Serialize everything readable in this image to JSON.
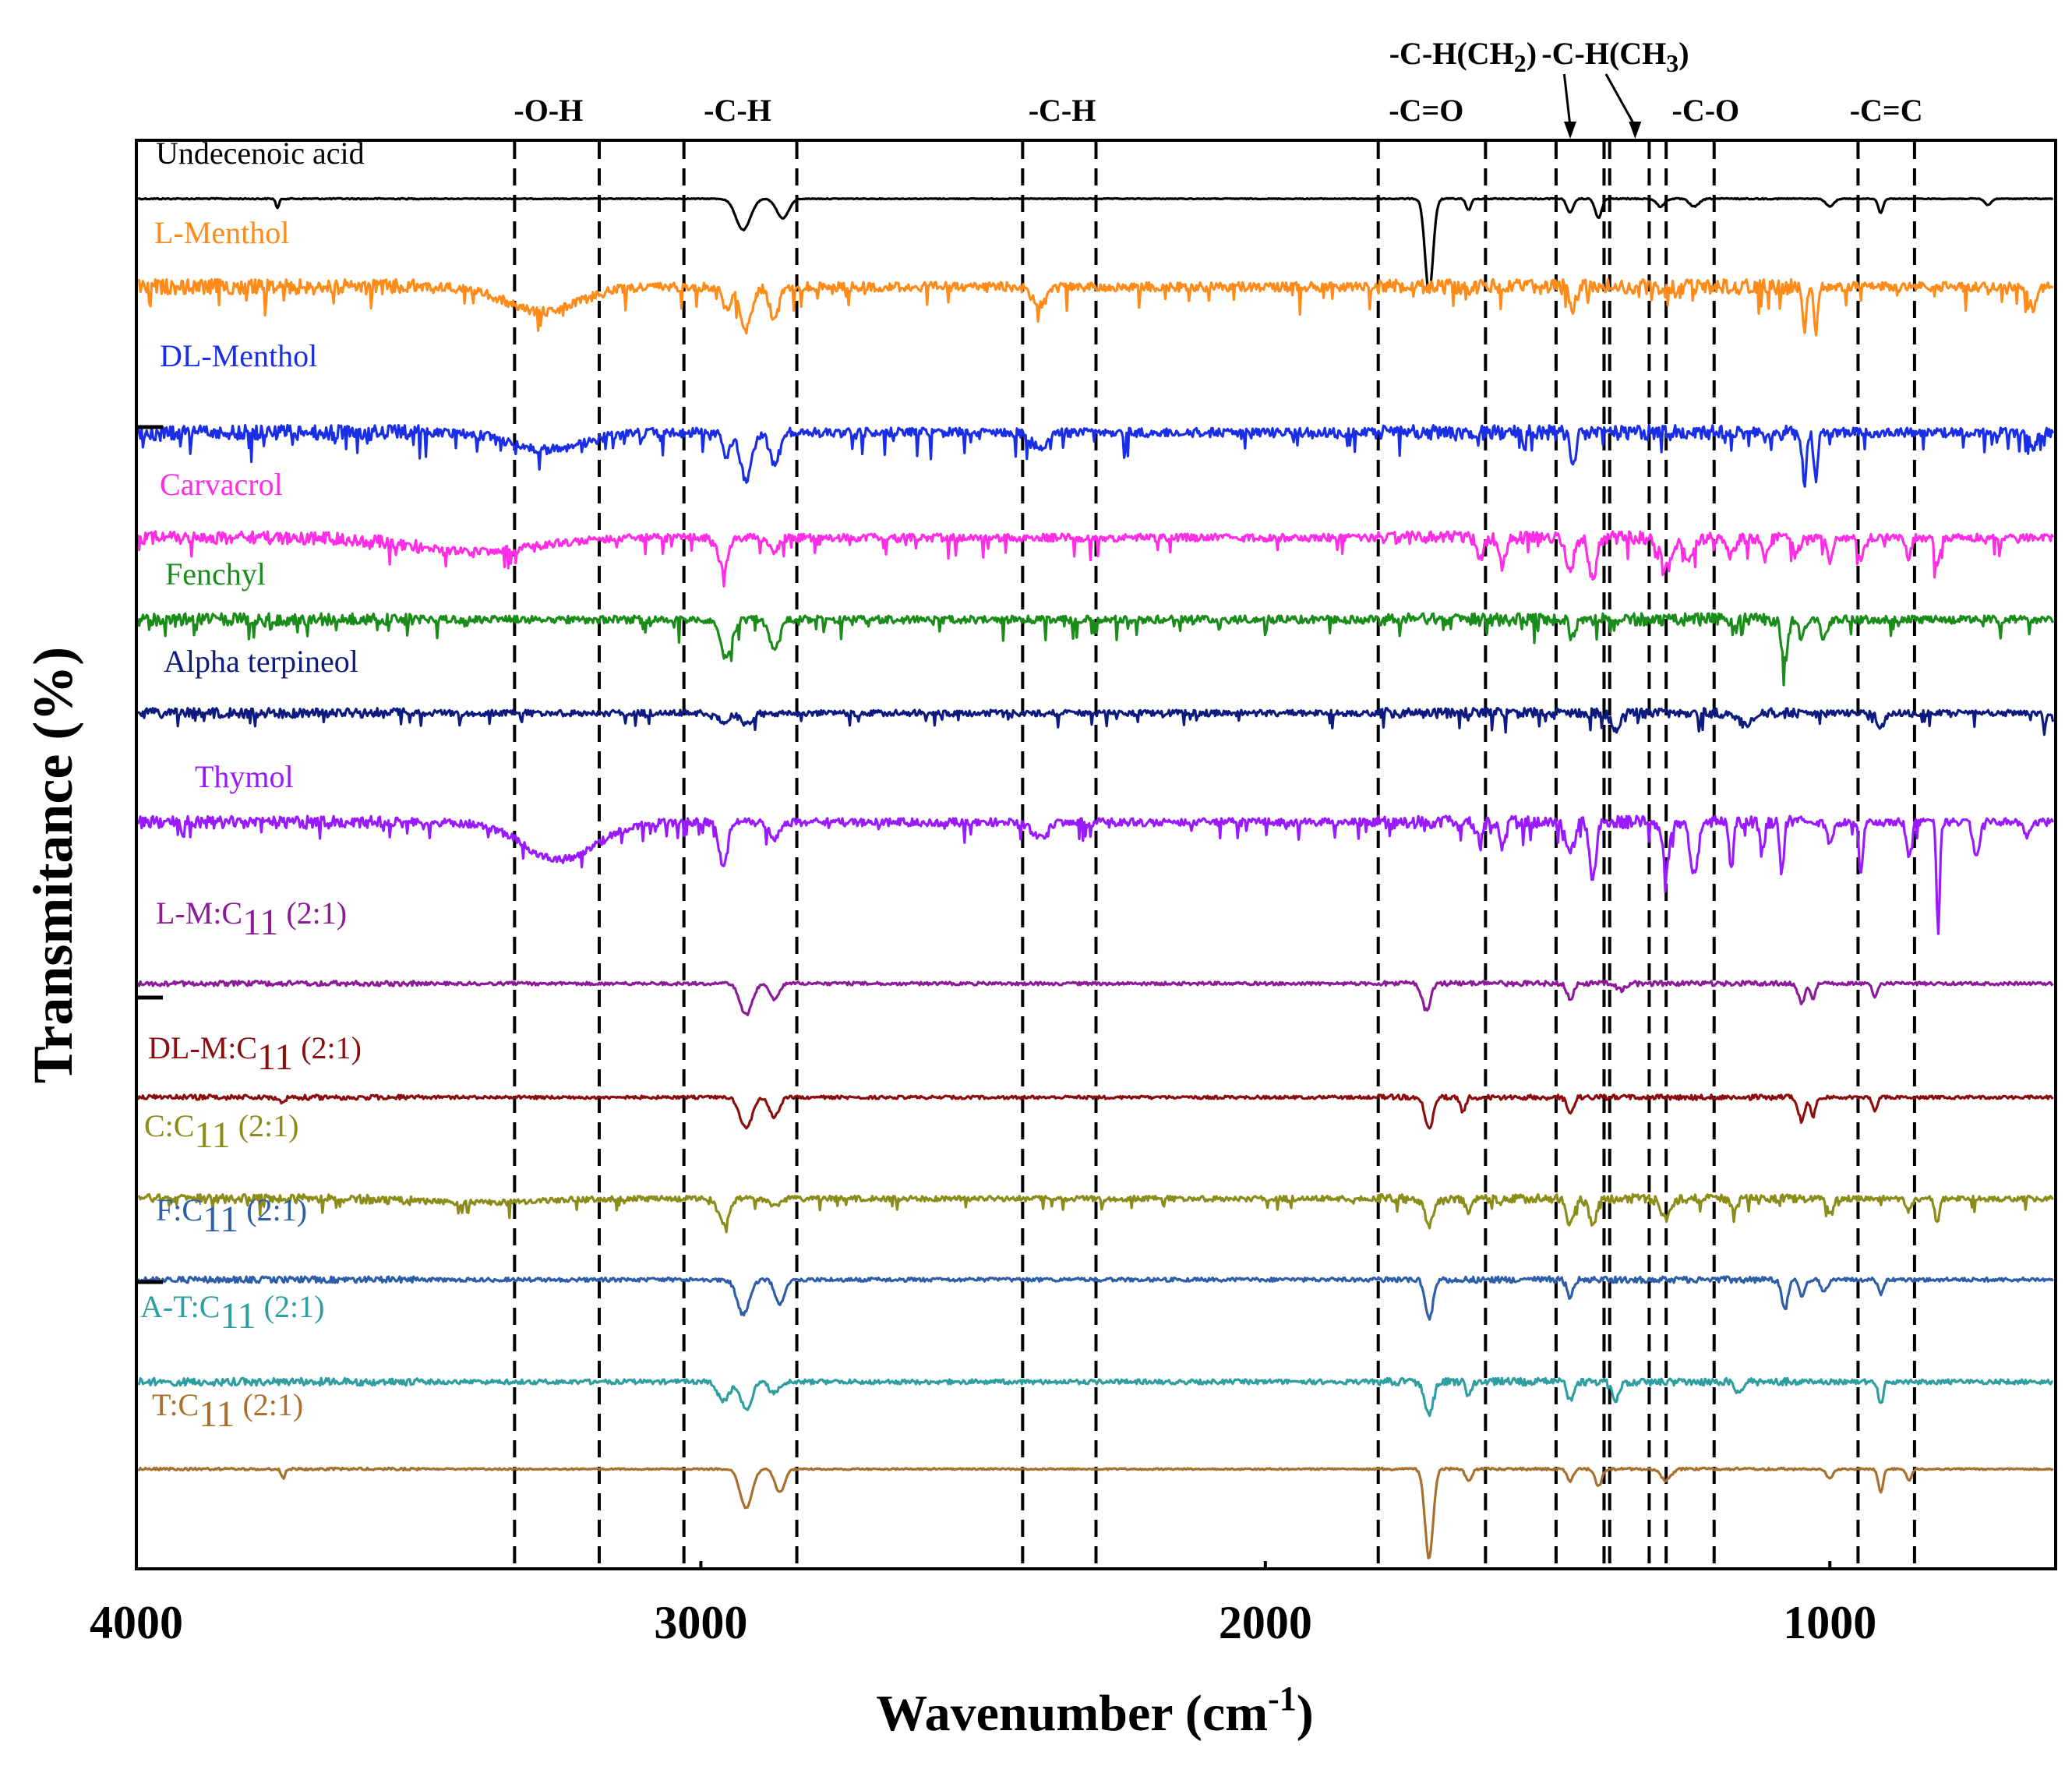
{
  "chart_data": {
    "type": "line",
    "title": "",
    "xlabel": "Wavenumber (cm",
    "xlabel_sup": "-1",
    "xlabel_end": ")",
    "ylabel": "Transmitance (%)",
    "xlim": [
      4000,
      600
    ],
    "x_reversed": true,
    "x_ticks": [
      {
        "value": 4000,
        "label": "4000"
      },
      {
        "value": 3000,
        "label": "3000"
      },
      {
        "value": 2000,
        "label": "2000"
      },
      {
        "value": 1000,
        "label": "1000"
      }
    ],
    "y_tick_marks": 3,
    "band_lines": [
      3330,
      3180,
      3030,
      2830,
      2430,
      2300,
      1800,
      1610,
      1485,
      1400,
      1390,
      1320,
      1290,
      1205,
      950,
      850
    ],
    "band_labels": [
      {
        "text": "-O-H",
        "x": 3270,
        "row": 2
      },
      {
        "text": "-C-H",
        "x": 2935,
        "row": 2
      },
      {
        "text": "-C-H",
        "x": 2360,
        "row": 2
      },
      {
        "text": "-C=O",
        "x": 1715,
        "row": 2
      },
      {
        "text": "-C-O",
        "x": 1220,
        "row": 2
      },
      {
        "text": "-C=C",
        "x": 900,
        "row": 2
      },
      {
        "text": "-C-H(CH",
        "sub": "2",
        "end": ")",
        "x": 1650,
        "row": 1,
        "arrow_to": 1460
      },
      {
        "text": "-C-H(CH",
        "sub": "3",
        "end": ")",
        "x": 1380,
        "row": 1,
        "arrow_to": 1345
      }
    ],
    "series": [
      {
        "name": "Undecenoic acid",
        "color": "#000000",
        "baseline": 0,
        "noise": 0.5,
        "dips": [
          [
            3750,
            12,
            4
          ],
          [
            2925,
            40,
            18
          ],
          [
            2855,
            25,
            15
          ],
          [
            1710,
            120,
            10
          ],
          [
            1640,
            15,
            6
          ],
          [
            1460,
            18,
            8
          ],
          [
            1410,
            25,
            8
          ],
          [
            1300,
            10,
            10
          ],
          [
            1240,
            10,
            12
          ],
          [
            1000,
            10,
            10
          ],
          [
            910,
            18,
            6
          ],
          [
            720,
            8,
            8
          ]
        ]
      },
      {
        "name": "L-Menthol",
        "color": "#ff8c1a",
        "baseline": 0,
        "noise": 6,
        "dips": [
          [
            3280,
            32,
            90
          ],
          [
            2955,
            30,
            10
          ],
          [
            2920,
            55,
            14
          ],
          [
            2870,
            40,
            12
          ],
          [
            2400,
            22,
            20
          ],
          [
            1455,
            25,
            8
          ],
          [
            1045,
            55,
            5
          ],
          [
            1025,
            50,
            5
          ],
          [
            640,
            28,
            10
          ]
        ]
      },
      {
        "name": "DL-Menthol",
        "color": "#1a2ee6",
        "baseline": 0,
        "noise": 6,
        "dips": [
          [
            3270,
            22,
            90
          ],
          [
            2955,
            30,
            10
          ],
          [
            2920,
            60,
            14
          ],
          [
            2870,
            40,
            12
          ],
          [
            2400,
            18,
            20
          ],
          [
            1455,
            50,
            6
          ],
          [
            1045,
            65,
            5
          ],
          [
            1025,
            60,
            5
          ],
          [
            640,
            18,
            10
          ]
        ]
      },
      {
        "name": "Carvacrol",
        "color": "#ff2ee6",
        "baseline": 0,
        "noise": 5,
        "dips": [
          [
            3400,
            18,
            150
          ],
          [
            2960,
            40,
            12
          ],
          [
            2870,
            18,
            12
          ],
          [
            1620,
            30,
            8
          ],
          [
            1580,
            35,
            8
          ],
          [
            1460,
            40,
            10
          ],
          [
            1420,
            50,
            10
          ],
          [
            1290,
            40,
            15
          ],
          [
            1250,
            30,
            12
          ],
          [
            1175,
            25,
            8
          ],
          [
            1115,
            30,
            8
          ],
          [
            1060,
            25,
            8
          ],
          [
            1000,
            25,
            8
          ],
          [
            945,
            25,
            8
          ],
          [
            860,
            25,
            6
          ],
          [
            810,
            40,
            6
          ]
        ]
      },
      {
        "name": "Fenchyl",
        "color": "#1a8c1a",
        "baseline": 0,
        "noise": 5,
        "dips": [
          [
            2955,
            50,
            14
          ],
          [
            2870,
            35,
            14
          ],
          [
            1455,
            25,
            8
          ],
          [
            1080,
            55,
            8
          ],
          [
            1050,
            20,
            8
          ],
          [
            1010,
            25,
            8
          ]
        ]
      },
      {
        "name": "Alpha terpineol",
        "color": "#0d1a80",
        "baseline": 0,
        "noise": 4,
        "dips": [
          [
            2960,
            12,
            12
          ],
          [
            2920,
            15,
            14
          ],
          [
            1380,
            20,
            10
          ],
          [
            1150,
            15,
            15
          ],
          [
            910,
            20,
            8
          ],
          [
            620,
            25,
            3
          ]
        ]
      },
      {
        "name": "Thymol",
        "color": "#9a1aff",
        "baseline": 0,
        "noise": 5,
        "dips": [
          [
            3250,
            48,
            90
          ],
          [
            2960,
            60,
            10
          ],
          [
            2870,
            22,
            12
          ],
          [
            2400,
            20,
            20
          ],
          [
            1620,
            25,
            8
          ],
          [
            1580,
            30,
            8
          ],
          [
            1460,
            40,
            10
          ],
          [
            1420,
            70,
            8
          ],
          [
            1290,
            60,
            8
          ],
          [
            1240,
            65,
            10
          ],
          [
            1175,
            50,
            6
          ],
          [
            1120,
            40,
            6
          ],
          [
            1085,
            65,
            5
          ],
          [
            1000,
            25,
            8
          ],
          [
            945,
            65,
            5
          ],
          [
            860,
            45,
            6
          ],
          [
            808,
            145,
            4
          ],
          [
            740,
            45,
            8
          ],
          [
            650,
            18,
            10
          ]
        ]
      },
      {
        "name": "L-M:C",
        "sub": "11",
        "ratio": " (2:1)",
        "color": "#8c1a99",
        "baseline": 0,
        "noise": 2,
        "dips": [
          [
            2920,
            40,
            15
          ],
          [
            2870,
            20,
            12
          ],
          [
            1715,
            35,
            10
          ],
          [
            1460,
            20,
            8
          ],
          [
            1370,
            8,
            10
          ],
          [
            1050,
            25,
            8
          ],
          [
            1030,
            20,
            6
          ],
          [
            920,
            18,
            6
          ]
        ]
      },
      {
        "name": "DL-M:C",
        "sub": "11",
        "ratio": " (2:1)",
        "color": "#8c0d0d",
        "baseline": 0,
        "noise": 2,
        "dips": [
          [
            3740,
            8,
            5
          ],
          [
            2920,
            40,
            15
          ],
          [
            2870,
            25,
            12
          ],
          [
            1710,
            40,
            10
          ],
          [
            1650,
            20,
            6
          ],
          [
            1460,
            20,
            8
          ],
          [
            1050,
            30,
            8
          ],
          [
            1030,
            25,
            6
          ],
          [
            920,
            18,
            6
          ]
        ]
      },
      {
        "name": "C:C",
        "sub": "11",
        "ratio": " (2:1)",
        "color": "#8c8c1a",
        "baseline": 0,
        "noise": 3.5,
        "dips": [
          [
            3400,
            5,
            150
          ],
          [
            2960,
            30,
            14
          ],
          [
            2870,
            10,
            12
          ],
          [
            1710,
            35,
            10
          ],
          [
            1640,
            18,
            8
          ],
          [
            1460,
            30,
            10
          ],
          [
            1420,
            30,
            10
          ],
          [
            1290,
            25,
            12
          ],
          [
            1170,
            15,
            8
          ],
          [
            1000,
            18,
            8
          ],
          [
            860,
            15,
            8
          ],
          [
            810,
            30,
            6
          ]
        ]
      },
      {
        "name": "F:C",
        "sub": "11",
        "ratio": " (2:1)",
        "color": "#2e5ea8",
        "baseline": 0,
        "noise": 2.5,
        "dips": [
          [
            2925,
            45,
            15
          ],
          [
            2860,
            30,
            12
          ],
          [
            1710,
            50,
            10
          ],
          [
            1460,
            22,
            8
          ],
          [
            1080,
            38,
            8
          ],
          [
            1050,
            20,
            8
          ],
          [
            1010,
            15,
            8
          ],
          [
            910,
            18,
            6
          ]
        ]
      },
      {
        "name": "A-T:C",
        "sub": "11",
        "ratio": " (2:1)",
        "color": "#2e9ea0",
        "baseline": 0,
        "noise": 3,
        "dips": [
          [
            2960,
            25,
            14
          ],
          [
            2920,
            35,
            14
          ],
          [
            2870,
            15,
            12
          ],
          [
            1710,
            45,
            10
          ],
          [
            1640,
            20,
            6
          ],
          [
            1460,
            22,
            8
          ],
          [
            1380,
            22,
            10
          ],
          [
            1160,
            15,
            10
          ],
          [
            910,
            30,
            6
          ]
        ]
      },
      {
        "name": "T:C",
        "sub": "11",
        "ratio": " (2:1)",
        "color": "#a8702e",
        "baseline": 0,
        "noise": 1,
        "dips": [
          [
            3740,
            12,
            5
          ],
          [
            2920,
            50,
            15
          ],
          [
            2860,
            30,
            12
          ],
          [
            1710,
            115,
            10
          ],
          [
            1640,
            15,
            8
          ],
          [
            1460,
            15,
            8
          ],
          [
            1410,
            22,
            8
          ],
          [
            1290,
            15,
            12
          ],
          [
            1000,
            12,
            8
          ],
          [
            910,
            30,
            6
          ],
          [
            860,
            15,
            6
          ]
        ]
      }
    ]
  }
}
